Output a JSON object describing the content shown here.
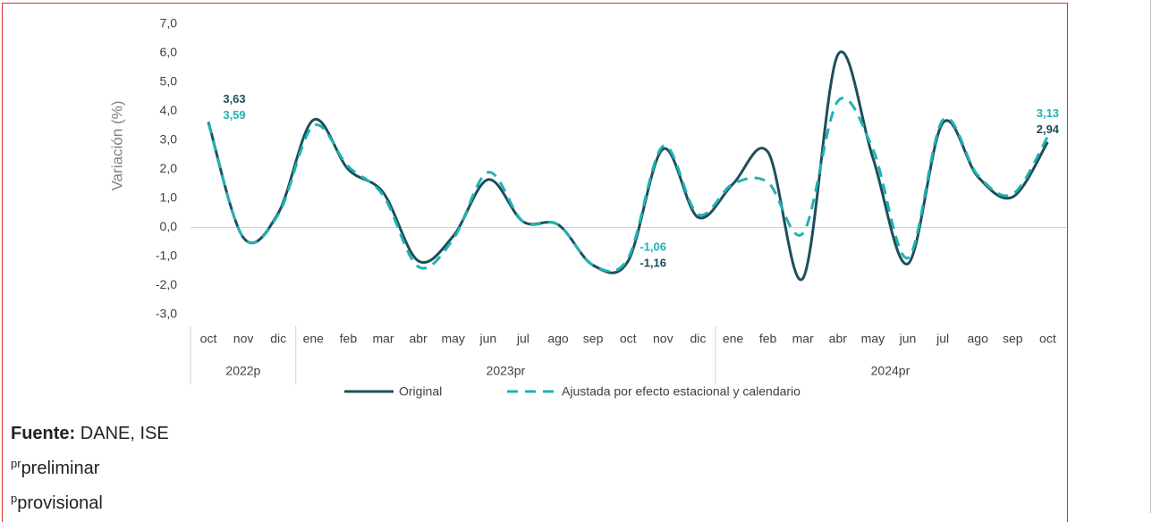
{
  "chart_data": {
    "type": "line",
    "y_label": "Variación (%)",
    "groups": [
      {
        "label": "2022p",
        "categories": [
          "oct",
          "nov",
          "dic"
        ]
      },
      {
        "label": "2023pr",
        "categories": [
          "ene",
          "feb",
          "mar",
          "abr",
          "may",
          "jun",
          "jul",
          "ago",
          "sep",
          "oct",
          "nov",
          "dic"
        ]
      },
      {
        "label": "2024pr",
        "categories": [
          "ene",
          "feb",
          "mar",
          "abr",
          "may",
          "jun",
          "jul",
          "ago",
          "sep",
          "oct"
        ]
      }
    ],
    "series": [
      {
        "name": "Original",
        "color": "#1d4e5a",
        "dash": false,
        "values": [
          3.63,
          -0.35,
          0.5,
          3.7,
          2.0,
          1.2,
          -1.15,
          -0.3,
          1.65,
          0.2,
          0.1,
          -1.3,
          -1.16,
          2.7,
          0.35,
          1.5,
          2.6,
          -1.75,
          5.95,
          2.4,
          -1.25,
          3.6,
          1.75,
          1.05,
          2.94
        ],
        "value_labels": [
          "3,63",
          null,
          null,
          null,
          null,
          null,
          null,
          null,
          null,
          null,
          null,
          null,
          "-1,16",
          null,
          null,
          null,
          null,
          null,
          null,
          null,
          null,
          null,
          null,
          null,
          "2,94"
        ]
      },
      {
        "name": "Ajustada por efecto estacional y calendario",
        "color": "#1fb3b3",
        "dash": true,
        "values": [
          3.59,
          -0.35,
          0.45,
          3.5,
          2.1,
          1.1,
          -1.35,
          -0.4,
          1.9,
          0.2,
          0.1,
          -1.3,
          -1.06,
          2.8,
          0.45,
          1.5,
          1.55,
          -0.2,
          4.35,
          2.7,
          -1.05,
          3.7,
          1.8,
          1.15,
          3.13
        ],
        "value_labels": [
          "3,59",
          null,
          null,
          null,
          null,
          null,
          null,
          null,
          null,
          null,
          null,
          null,
          "-1,06",
          null,
          null,
          null,
          null,
          null,
          null,
          null,
          null,
          null,
          null,
          null,
          "3,13"
        ]
      }
    ],
    "ylim": [
      -3,
      7
    ],
    "yticks": [
      {
        "value": 7,
        "label": "7,0"
      },
      {
        "value": 6,
        "label": "6,0"
      },
      {
        "value": 5,
        "label": "5,0"
      },
      {
        "value": 4,
        "label": "4,0"
      },
      {
        "value": 3,
        "label": "3,0"
      },
      {
        "value": 2,
        "label": "2,0"
      },
      {
        "value": 1,
        "label": "1,0"
      },
      {
        "value": 0,
        "label": "0,0"
      },
      {
        "value": -1,
        "label": "-1,0"
      },
      {
        "value": -2,
        "label": "-2,0"
      },
      {
        "value": -3,
        "label": "-3,0"
      }
    ],
    "grid": false,
    "legend": "bottom"
  },
  "notes": {
    "source_label": "Fuente:",
    "source": "DANE, ISE",
    "prelim_mark": "pr",
    "prelim": "preliminar",
    "prov_mark": "p",
    "prov": "provisional"
  }
}
